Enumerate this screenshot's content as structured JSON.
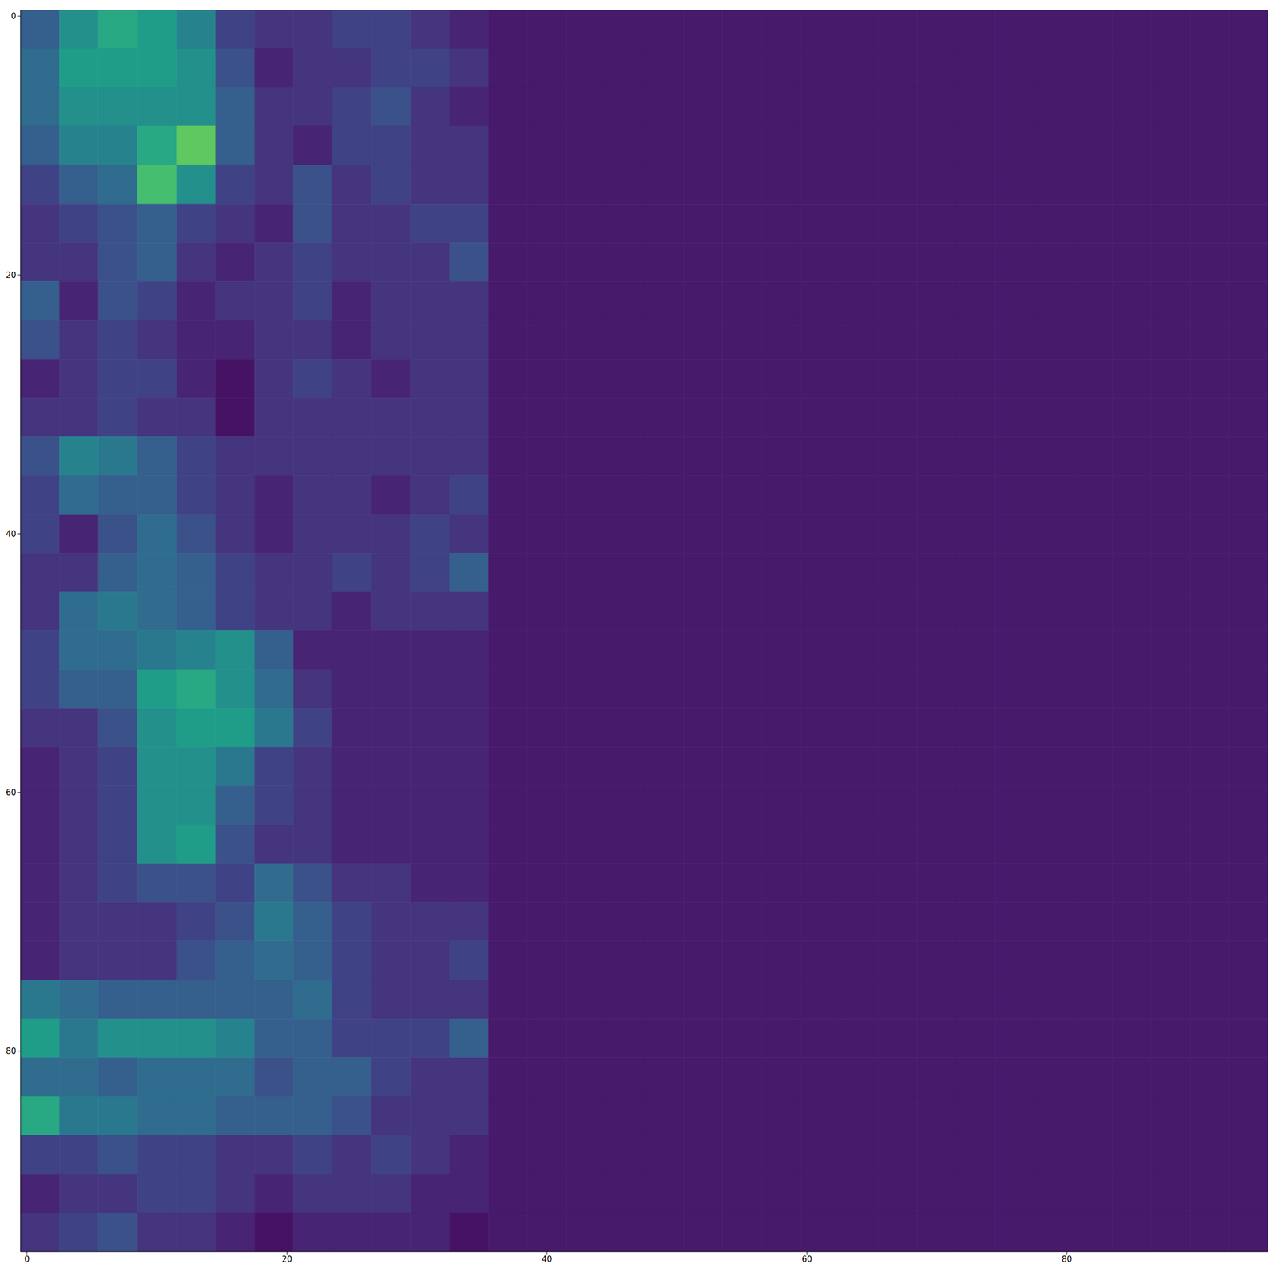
{
  "chart_data": {
    "type": "heatmap",
    "color": "viridis",
    "color_range": [
      0,
      1
    ],
    "xlim": [
      -0.5,
      95.5
    ],
    "ylim": [
      95.5,
      -0.5
    ],
    "xticks": [
      0,
      20,
      40,
      60,
      80
    ],
    "yticks": [
      0,
      20,
      40,
      60,
      80
    ],
    "cells": [
      [
        0.3,
        0.5,
        0.6,
        0.55,
        0.45,
        0.2,
        0.15,
        0.15,
        0.2,
        0.2,
        0.15,
        0.1,
        0.07,
        0.07,
        0.07,
        0.07,
        0.07,
        0.07,
        0.07,
        0.07,
        0.07,
        0.07,
        0.07,
        0.07,
        0.07,
        0.07,
        0.07,
        0.07,
        0.07,
        0.07,
        0.07,
        0.07
      ],
      [
        0.35,
        0.55,
        0.55,
        0.55,
        0.5,
        0.25,
        0.1,
        0.15,
        0.15,
        0.2,
        0.2,
        0.15,
        0.07,
        0.07,
        0.07,
        0.07,
        0.07,
        0.07,
        0.07,
        0.07,
        0.07,
        0.07,
        0.07,
        0.07,
        0.07,
        0.07,
        0.07,
        0.07,
        0.07,
        0.07,
        0.07,
        0.07
      ],
      [
        0.35,
        0.5,
        0.5,
        0.5,
        0.5,
        0.3,
        0.15,
        0.15,
        0.2,
        0.25,
        0.15,
        0.1,
        0.07,
        0.07,
        0.07,
        0.07,
        0.07,
        0.07,
        0.07,
        0.07,
        0.07,
        0.07,
        0.07,
        0.07,
        0.07,
        0.07,
        0.07,
        0.07,
        0.07,
        0.07,
        0.07,
        0.07
      ],
      [
        0.3,
        0.45,
        0.45,
        0.6,
        0.75,
        0.3,
        0.15,
        0.1,
        0.2,
        0.2,
        0.15,
        0.15,
        0.07,
        0.07,
        0.07,
        0.07,
        0.07,
        0.07,
        0.07,
        0.07,
        0.07,
        0.07,
        0.07,
        0.07,
        0.07,
        0.07,
        0.07,
        0.07,
        0.07,
        0.07,
        0.07,
        0.07
      ],
      [
        0.2,
        0.3,
        0.35,
        0.7,
        0.5,
        0.2,
        0.15,
        0.25,
        0.15,
        0.2,
        0.15,
        0.15,
        0.07,
        0.07,
        0.07,
        0.07,
        0.07,
        0.07,
        0.07,
        0.07,
        0.07,
        0.07,
        0.07,
        0.07,
        0.07,
        0.07,
        0.07,
        0.07,
        0.07,
        0.07,
        0.07,
        0.07
      ],
      [
        0.15,
        0.2,
        0.25,
        0.3,
        0.2,
        0.15,
        0.1,
        0.25,
        0.15,
        0.15,
        0.2,
        0.2,
        0.07,
        0.07,
        0.07,
        0.07,
        0.07,
        0.07,
        0.07,
        0.07,
        0.07,
        0.07,
        0.07,
        0.07,
        0.07,
        0.07,
        0.07,
        0.07,
        0.07,
        0.07,
        0.07,
        0.07
      ],
      [
        0.15,
        0.15,
        0.25,
        0.3,
        0.15,
        0.1,
        0.15,
        0.2,
        0.15,
        0.15,
        0.15,
        0.25,
        0.07,
        0.07,
        0.07,
        0.07,
        0.07,
        0.07,
        0.07,
        0.07,
        0.07,
        0.07,
        0.07,
        0.07,
        0.07,
        0.07,
        0.07,
        0.07,
        0.07,
        0.07,
        0.07,
        0.07
      ],
      [
        0.3,
        0.1,
        0.25,
        0.2,
        0.1,
        0.15,
        0.15,
        0.2,
        0.1,
        0.15,
        0.15,
        0.15,
        0.07,
        0.07,
        0.07,
        0.07,
        0.07,
        0.07,
        0.07,
        0.07,
        0.07,
        0.07,
        0.07,
        0.07,
        0.07,
        0.07,
        0.07,
        0.07,
        0.07,
        0.07,
        0.07,
        0.07
      ],
      [
        0.25,
        0.15,
        0.2,
        0.15,
        0.1,
        0.1,
        0.15,
        0.15,
        0.1,
        0.15,
        0.15,
        0.15,
        0.07,
        0.07,
        0.07,
        0.07,
        0.07,
        0.07,
        0.07,
        0.07,
        0.07,
        0.07,
        0.07,
        0.07,
        0.07,
        0.07,
        0.07,
        0.07,
        0.07,
        0.07,
        0.07,
        0.07
      ],
      [
        0.1,
        0.15,
        0.2,
        0.2,
        0.1,
        0.05,
        0.15,
        0.2,
        0.15,
        0.1,
        0.15,
        0.15,
        0.07,
        0.07,
        0.07,
        0.07,
        0.07,
        0.07,
        0.07,
        0.07,
        0.07,
        0.07,
        0.07,
        0.07,
        0.07,
        0.07,
        0.07,
        0.07,
        0.07,
        0.07,
        0.07,
        0.07
      ],
      [
        0.15,
        0.15,
        0.2,
        0.15,
        0.15,
        0.05,
        0.15,
        0.15,
        0.15,
        0.15,
        0.15,
        0.15,
        0.07,
        0.07,
        0.07,
        0.07,
        0.07,
        0.07,
        0.07,
        0.07,
        0.07,
        0.07,
        0.07,
        0.07,
        0.07,
        0.07,
        0.07,
        0.07,
        0.07,
        0.07,
        0.07,
        0.07
      ],
      [
        0.25,
        0.45,
        0.4,
        0.3,
        0.2,
        0.15,
        0.15,
        0.15,
        0.15,
        0.15,
        0.15,
        0.15,
        0.07,
        0.07,
        0.07,
        0.07,
        0.07,
        0.07,
        0.07,
        0.07,
        0.07,
        0.07,
        0.07,
        0.07,
        0.07,
        0.07,
        0.07,
        0.07,
        0.07,
        0.07,
        0.07,
        0.07
      ],
      [
        0.2,
        0.35,
        0.3,
        0.3,
        0.2,
        0.15,
        0.1,
        0.15,
        0.15,
        0.1,
        0.15,
        0.2,
        0.07,
        0.07,
        0.07,
        0.07,
        0.07,
        0.07,
        0.07,
        0.07,
        0.07,
        0.07,
        0.07,
        0.07,
        0.07,
        0.07,
        0.07,
        0.07,
        0.07,
        0.07,
        0.07,
        0.07
      ],
      [
        0.2,
        0.1,
        0.25,
        0.35,
        0.25,
        0.15,
        0.1,
        0.15,
        0.15,
        0.15,
        0.2,
        0.15,
        0.07,
        0.07,
        0.07,
        0.07,
        0.07,
        0.07,
        0.07,
        0.07,
        0.07,
        0.07,
        0.07,
        0.07,
        0.07,
        0.07,
        0.07,
        0.07,
        0.07,
        0.07,
        0.07,
        0.07
      ],
      [
        0.15,
        0.15,
        0.3,
        0.35,
        0.3,
        0.2,
        0.15,
        0.15,
        0.2,
        0.15,
        0.2,
        0.3,
        0.07,
        0.07,
        0.07,
        0.07,
        0.07,
        0.07,
        0.07,
        0.07,
        0.07,
        0.07,
        0.07,
        0.07,
        0.07,
        0.07,
        0.07,
        0.07,
        0.07,
        0.07,
        0.07,
        0.07
      ],
      [
        0.15,
        0.35,
        0.4,
        0.35,
        0.3,
        0.2,
        0.15,
        0.15,
        0.1,
        0.15,
        0.15,
        0.15,
        0.07,
        0.07,
        0.07,
        0.07,
        0.07,
        0.07,
        0.07,
        0.07,
        0.07,
        0.07,
        0.07,
        0.07,
        0.07,
        0.07,
        0.07,
        0.07,
        0.07,
        0.07,
        0.07,
        0.07
      ],
      [
        0.2,
        0.35,
        0.35,
        0.4,
        0.45,
        0.5,
        0.3,
        0.1,
        0.1,
        0.1,
        0.1,
        0.1,
        0.07,
        0.07,
        0.07,
        0.07,
        0.07,
        0.07,
        0.07,
        0.07,
        0.07,
        0.07,
        0.07,
        0.07,
        0.07,
        0.07,
        0.07,
        0.07,
        0.07,
        0.07,
        0.07,
        0.07
      ],
      [
        0.2,
        0.3,
        0.3,
        0.55,
        0.6,
        0.5,
        0.35,
        0.15,
        0.1,
        0.1,
        0.1,
        0.1,
        0.07,
        0.07,
        0.07,
        0.07,
        0.07,
        0.07,
        0.07,
        0.07,
        0.07,
        0.07,
        0.07,
        0.07,
        0.07,
        0.07,
        0.07,
        0.07,
        0.07,
        0.07,
        0.07,
        0.07
      ],
      [
        0.15,
        0.15,
        0.25,
        0.5,
        0.55,
        0.55,
        0.4,
        0.2,
        0.1,
        0.1,
        0.1,
        0.1,
        0.07,
        0.07,
        0.07,
        0.07,
        0.07,
        0.07,
        0.07,
        0.07,
        0.07,
        0.07,
        0.07,
        0.07,
        0.07,
        0.07,
        0.07,
        0.07,
        0.07,
        0.07,
        0.07,
        0.07
      ],
      [
        0.1,
        0.15,
        0.2,
        0.5,
        0.5,
        0.4,
        0.2,
        0.15,
        0.1,
        0.1,
        0.1,
        0.1,
        0.07,
        0.07,
        0.07,
        0.07,
        0.07,
        0.07,
        0.07,
        0.07,
        0.07,
        0.07,
        0.07,
        0.07,
        0.07,
        0.07,
        0.07,
        0.07,
        0.07,
        0.07,
        0.07,
        0.07
      ],
      [
        0.1,
        0.15,
        0.2,
        0.5,
        0.5,
        0.3,
        0.2,
        0.15,
        0.1,
        0.1,
        0.1,
        0.1,
        0.07,
        0.07,
        0.07,
        0.07,
        0.07,
        0.07,
        0.07,
        0.07,
        0.07,
        0.07,
        0.07,
        0.07,
        0.07,
        0.07,
        0.07,
        0.07,
        0.07,
        0.07,
        0.07,
        0.07
      ],
      [
        0.1,
        0.15,
        0.2,
        0.5,
        0.55,
        0.25,
        0.15,
        0.15,
        0.1,
        0.1,
        0.1,
        0.1,
        0.07,
        0.07,
        0.07,
        0.07,
        0.07,
        0.07,
        0.07,
        0.07,
        0.07,
        0.07,
        0.07,
        0.07,
        0.07,
        0.07,
        0.07,
        0.07,
        0.07,
        0.07,
        0.07,
        0.07
      ],
      [
        0.1,
        0.15,
        0.2,
        0.25,
        0.25,
        0.2,
        0.35,
        0.25,
        0.15,
        0.15,
        0.1,
        0.1,
        0.07,
        0.07,
        0.07,
        0.07,
        0.07,
        0.07,
        0.07,
        0.07,
        0.07,
        0.07,
        0.07,
        0.07,
        0.07,
        0.07,
        0.07,
        0.07,
        0.07,
        0.07,
        0.07,
        0.07
      ],
      [
        0.1,
        0.15,
        0.15,
        0.15,
        0.2,
        0.25,
        0.4,
        0.3,
        0.2,
        0.15,
        0.15,
        0.15,
        0.07,
        0.07,
        0.07,
        0.07,
        0.07,
        0.07,
        0.07,
        0.07,
        0.07,
        0.07,
        0.07,
        0.07,
        0.07,
        0.07,
        0.07,
        0.07,
        0.07,
        0.07,
        0.07,
        0.07
      ],
      [
        0.1,
        0.15,
        0.15,
        0.15,
        0.25,
        0.3,
        0.35,
        0.3,
        0.2,
        0.15,
        0.15,
        0.2,
        0.07,
        0.07,
        0.07,
        0.07,
        0.07,
        0.07,
        0.07,
        0.07,
        0.07,
        0.07,
        0.07,
        0.07,
        0.07,
        0.07,
        0.07,
        0.07,
        0.07,
        0.07,
        0.07,
        0.07
      ],
      [
        0.4,
        0.35,
        0.3,
        0.3,
        0.3,
        0.3,
        0.3,
        0.35,
        0.2,
        0.15,
        0.15,
        0.15,
        0.07,
        0.07,
        0.07,
        0.07,
        0.07,
        0.07,
        0.07,
        0.07,
        0.07,
        0.07,
        0.07,
        0.07,
        0.07,
        0.07,
        0.07,
        0.07,
        0.07,
        0.07,
        0.07,
        0.07
      ],
      [
        0.55,
        0.4,
        0.5,
        0.5,
        0.5,
        0.45,
        0.3,
        0.3,
        0.2,
        0.2,
        0.2,
        0.3,
        0.07,
        0.07,
        0.07,
        0.07,
        0.07,
        0.07,
        0.07,
        0.07,
        0.07,
        0.07,
        0.07,
        0.07,
        0.07,
        0.07,
        0.07,
        0.07,
        0.07,
        0.07,
        0.07,
        0.07
      ],
      [
        0.35,
        0.35,
        0.3,
        0.35,
        0.35,
        0.35,
        0.25,
        0.3,
        0.3,
        0.2,
        0.15,
        0.15,
        0.07,
        0.07,
        0.07,
        0.07,
        0.07,
        0.07,
        0.07,
        0.07,
        0.07,
        0.07,
        0.07,
        0.07,
        0.07,
        0.07,
        0.07,
        0.07,
        0.07,
        0.07,
        0.07,
        0.07
      ],
      [
        0.6,
        0.4,
        0.4,
        0.35,
        0.35,
        0.3,
        0.3,
        0.3,
        0.25,
        0.15,
        0.15,
        0.15,
        0.07,
        0.07,
        0.07,
        0.07,
        0.07,
        0.07,
        0.07,
        0.07,
        0.07,
        0.07,
        0.07,
        0.07,
        0.07,
        0.07,
        0.07,
        0.07,
        0.07,
        0.07,
        0.07,
        0.07
      ],
      [
        0.2,
        0.2,
        0.25,
        0.2,
        0.2,
        0.15,
        0.15,
        0.2,
        0.15,
        0.2,
        0.15,
        0.1,
        0.07,
        0.07,
        0.07,
        0.07,
        0.07,
        0.07,
        0.07,
        0.07,
        0.07,
        0.07,
        0.07,
        0.07,
        0.07,
        0.07,
        0.07,
        0.07,
        0.07,
        0.07,
        0.07,
        0.07
      ],
      [
        0.1,
        0.15,
        0.15,
        0.2,
        0.2,
        0.15,
        0.1,
        0.15,
        0.15,
        0.15,
        0.1,
        0.1,
        0.07,
        0.07,
        0.07,
        0.07,
        0.07,
        0.07,
        0.07,
        0.07,
        0.07,
        0.07,
        0.07,
        0.07,
        0.07,
        0.07,
        0.07,
        0.07,
        0.07,
        0.07,
        0.07,
        0.07
      ],
      [
        0.15,
        0.2,
        0.25,
        0.15,
        0.15,
        0.1,
        0.05,
        0.1,
        0.1,
        0.1,
        0.1,
        0.05,
        0.07,
        0.07,
        0.07,
        0.07,
        0.07,
        0.07,
        0.07,
        0.07,
        0.07,
        0.07,
        0.07,
        0.07,
        0.07,
        0.07,
        0.07,
        0.07,
        0.07,
        0.07,
        0.07,
        0.07
      ]
    ]
  }
}
